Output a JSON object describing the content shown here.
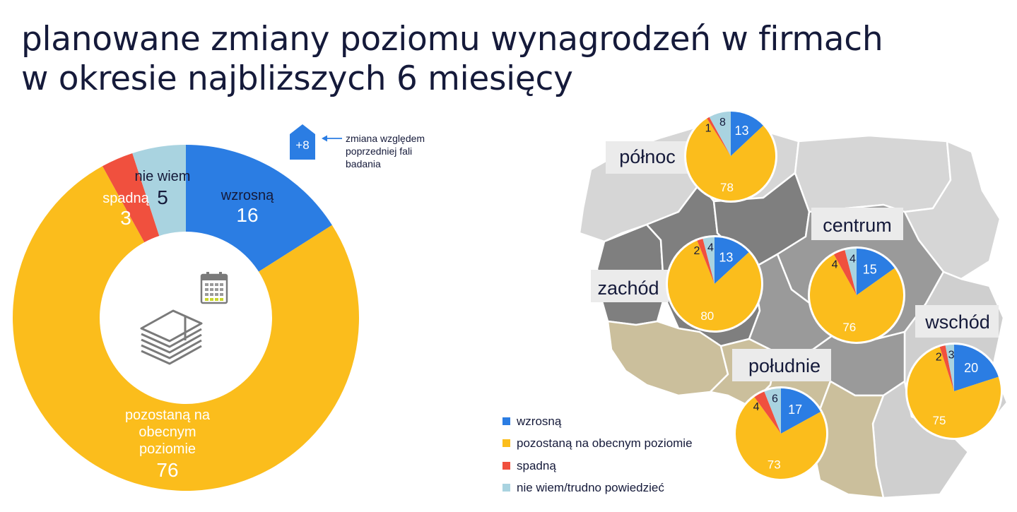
{
  "title": {
    "line1": "planowane zmiany poziomu wynagrodzeń w firmach",
    "line2": "w okresie najbliższych 6 miesięcy"
  },
  "change_note": {
    "badge": "+8",
    "text_lines": [
      "zmiana względem",
      "poprzedniej fali",
      "badania"
    ]
  },
  "donut_labels": {
    "wzrosna": "wzrosną",
    "pozostana": [
      "pozostaną na",
      "obecnym",
      "poziomie"
    ],
    "spadna": "spadną",
    "nie_wiem": "nie wiem"
  },
  "legend": [
    {
      "label": "wzrosną",
      "color": "#2b7de3"
    },
    {
      "label": "pozostaną na obecnym poziomie",
      "color": "#fbbd1c"
    },
    {
      "label": "spadną",
      "color": "#f0503e"
    },
    {
      "label": "nie wiem/trudno powiedzieć",
      "color": "#a9d3e0"
    }
  ],
  "region_labels": {
    "polnoc": "północ",
    "centrum": "centrum",
    "zachod": "zachód",
    "wschod": "wschód",
    "poludnie": "południe"
  },
  "icons": [
    "calendar-icon",
    "money-stack-icon"
  ],
  "chart_data": [
    {
      "type": "pie",
      "subtype": "donut",
      "categories": [
        "wzrosną",
        "pozostaną na obecnym poziomie",
        "spadną",
        "nie wiem"
      ],
      "values": [
        16,
        76,
        3,
        5
      ],
      "colors": [
        "#2b7de3",
        "#fbbd1c",
        "#f0503e",
        "#a9d3e0"
      ],
      "annotation": {
        "category": "wzrosną",
        "change": "+8"
      }
    },
    {
      "type": "pie",
      "region": "północ",
      "categories": [
        "wzrosną",
        "pozostaną na obecnym poziomie",
        "spadną",
        "nie wiem/trudno powiedzieć"
      ],
      "values": [
        13,
        78,
        1,
        8
      ]
    },
    {
      "type": "pie",
      "region": "zachód",
      "categories": [
        "wzrosną",
        "pozostaną na obecnym poziomie",
        "spadną",
        "nie wiem/trudno powiedzieć"
      ],
      "values": [
        13,
        80,
        2,
        4
      ]
    },
    {
      "type": "pie",
      "region": "centrum",
      "categories": [
        "wzrosną",
        "pozostaną na obecnym poziomie",
        "spadną",
        "nie wiem/trudno powiedzieć"
      ],
      "values": [
        15,
        76,
        4,
        4
      ]
    },
    {
      "type": "pie",
      "region": "wschód",
      "categories": [
        "wzrosną",
        "pozostaną na obecnym poziomie",
        "spadną",
        "nie wiem/trudno powiedzieć"
      ],
      "values": [
        20,
        75,
        2,
        3
      ]
    },
    {
      "type": "pie",
      "region": "południe",
      "categories": [
        "wzrosną",
        "pozostaną na obecnym poziomie",
        "spadną",
        "nie wiem/trudno powiedzieć"
      ],
      "values": [
        17,
        73,
        4,
        6
      ]
    }
  ]
}
